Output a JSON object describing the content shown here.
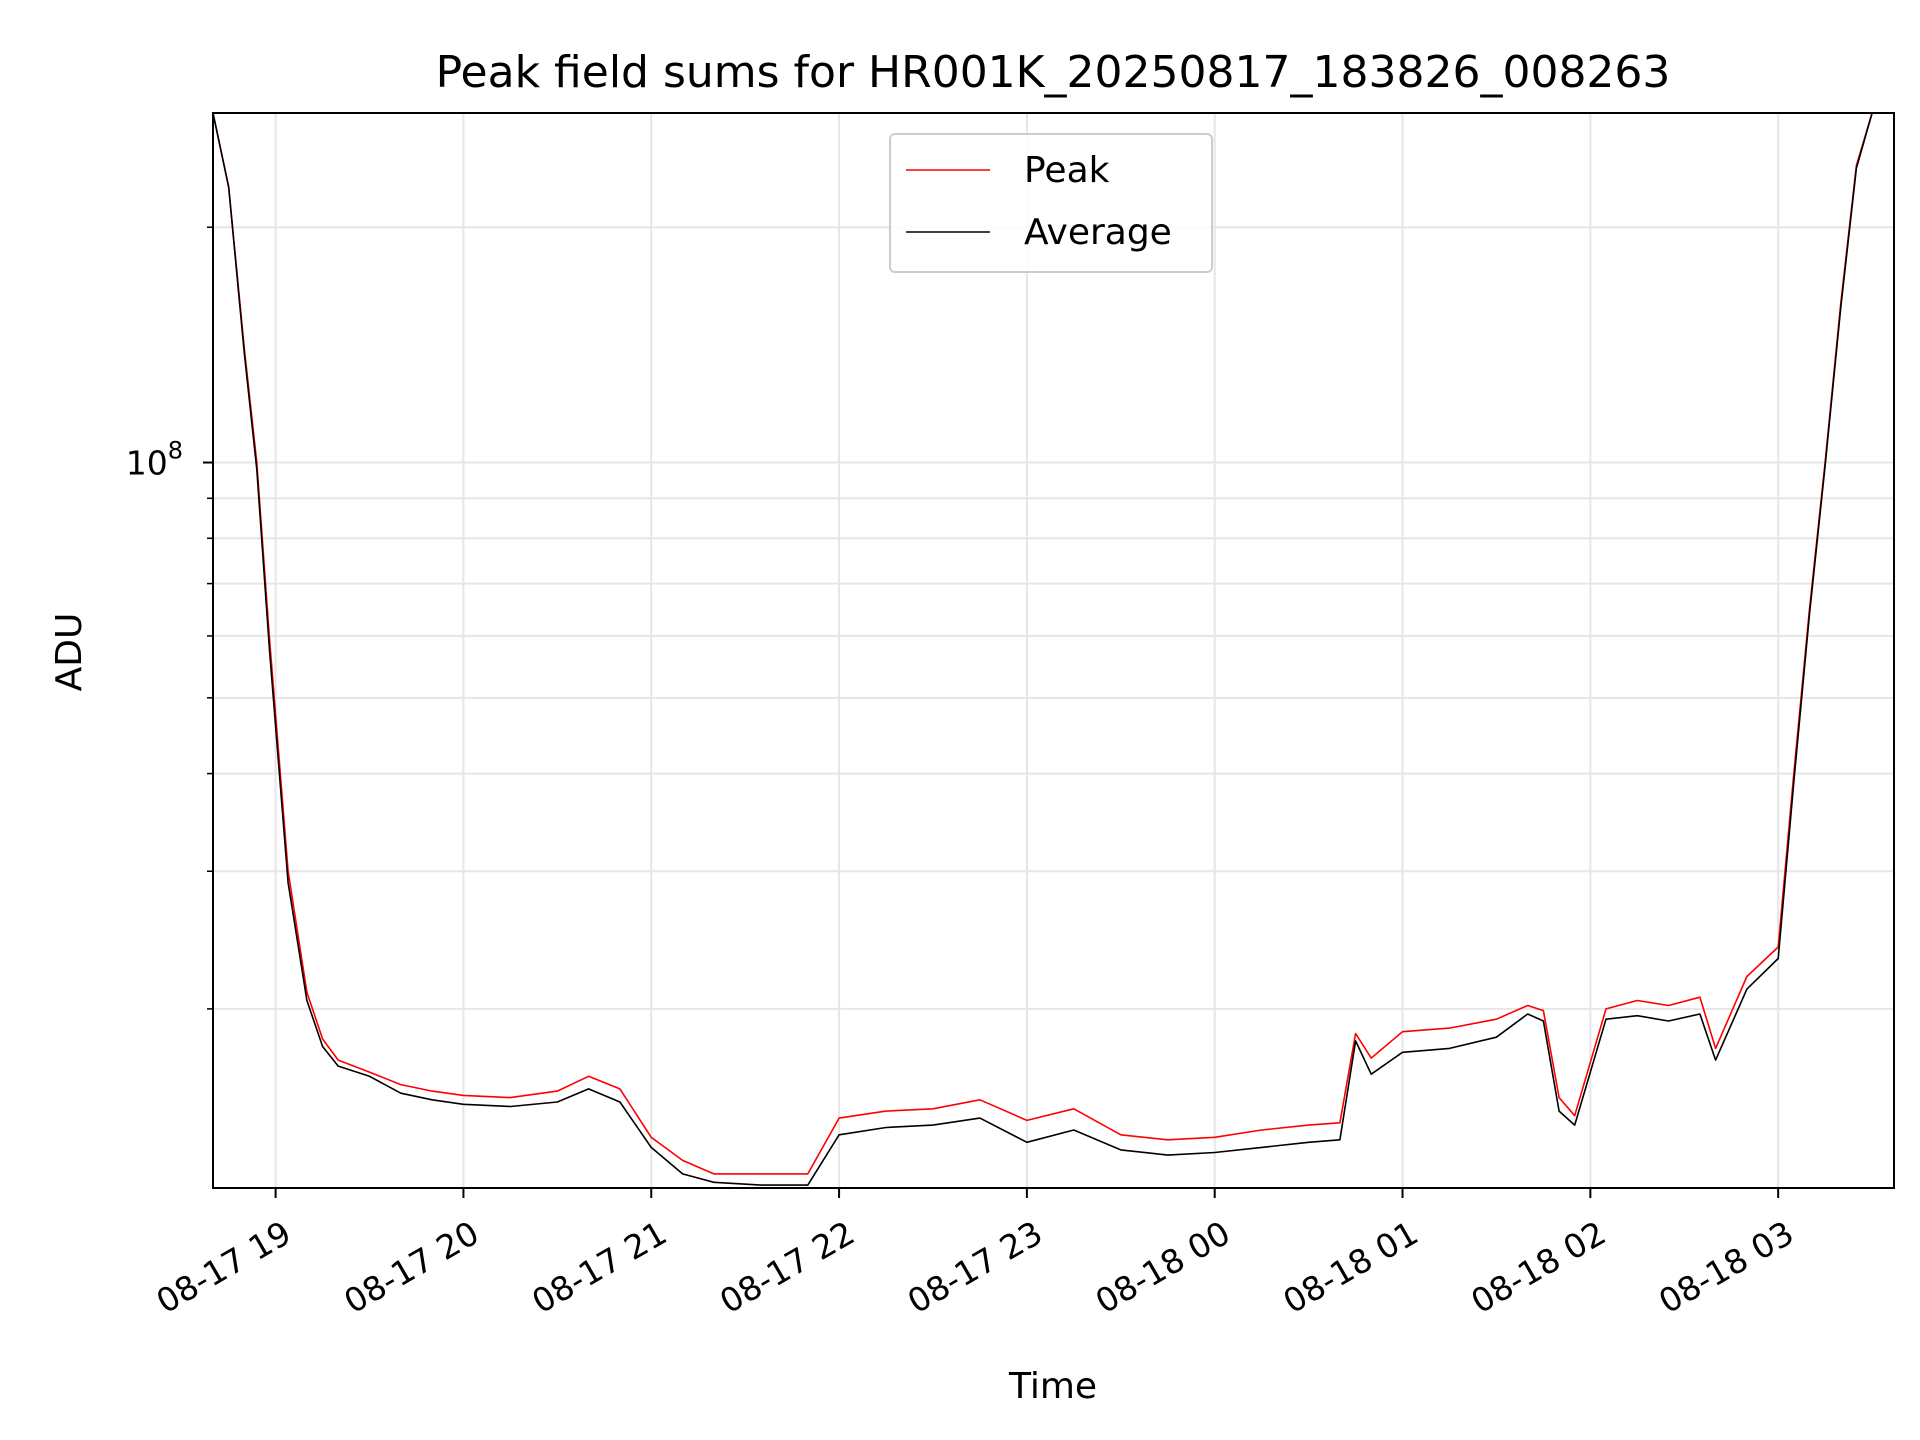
{
  "chart_data": {
    "type": "line",
    "title": "Peak field sums for HR001K_20250817_183826_008263",
    "xlabel": "Time",
    "ylabel": "ADU",
    "y_scale": "log",
    "ylim": [
      11800000,
      280000000
    ],
    "xlim": [
      "2025-08-17 18:40",
      "2025-08-18 03:37"
    ],
    "grid": true,
    "legend_position": "top-center",
    "x_ticks": [
      "08-17 19",
      "08-17 20",
      "08-17 21",
      "08-17 22",
      "08-17 23",
      "08-18 00",
      "08-18 01",
      "08-18 02",
      "08-18 03"
    ],
    "y_tick_label": {
      "base": "10",
      "exp": "8"
    },
    "colors": {
      "peak": "#ff0000",
      "average": "#000000",
      "grid": "#e6e6e6"
    },
    "series": [
      {
        "name": "Peak",
        "x": [
          "2025-08-17 18:40",
          "2025-08-17 18:45",
          "2025-08-17 18:50",
          "2025-08-17 18:54",
          "2025-08-17 18:58",
          "2025-08-17 19:04",
          "2025-08-17 19:10",
          "2025-08-17 19:15",
          "2025-08-17 19:20",
          "2025-08-17 19:30",
          "2025-08-17 19:40",
          "2025-08-17 19:50",
          "2025-08-17 20:00",
          "2025-08-17 20:15",
          "2025-08-17 20:30",
          "2025-08-17 20:40",
          "2025-08-17 20:50",
          "2025-08-17 21:00",
          "2025-08-17 21:10",
          "2025-08-17 21:20",
          "2025-08-17 21:35",
          "2025-08-17 21:50",
          "2025-08-17 22:00",
          "2025-08-17 22:15",
          "2025-08-17 22:30",
          "2025-08-17 22:45",
          "2025-08-17 23:00",
          "2025-08-17 23:15",
          "2025-08-17 23:30",
          "2025-08-17 23:45",
          "2025-08-18 00:00",
          "2025-08-18 00:15",
          "2025-08-18 00:30",
          "2025-08-18 00:40",
          "2025-08-18 00:45",
          "2025-08-18 00:50",
          "2025-08-18 01:00",
          "2025-08-18 01:15",
          "2025-08-18 01:30",
          "2025-08-18 01:40",
          "2025-08-18 01:45",
          "2025-08-18 01:50",
          "2025-08-18 01:55",
          "2025-08-18 02:05",
          "2025-08-18 02:15",
          "2025-08-18 02:25",
          "2025-08-18 02:35",
          "2025-08-18 02:40",
          "2025-08-18 02:50",
          "2025-08-18 03:00",
          "2025-08-18 03:05",
          "2025-08-18 03:10",
          "2025-08-18 03:15",
          "2025-08-18 03:20",
          "2025-08-18 03:25",
          "2025-08-18 03:30",
          "2025-08-18 03:37"
        ],
        "y": [
          280000000,
          225000000,
          140000000,
          100000000,
          60000000,
          30000000,
          21000000,
          18300000,
          17200000,
          16600000,
          16000000,
          15700000,
          15500000,
          15400000,
          15700000,
          16400000,
          15800000,
          13700000,
          12800000,
          12300000,
          12300000,
          12300000,
          14500000,
          14800000,
          14900000,
          15300000,
          14400000,
          14900000,
          13800000,
          13600000,
          13700000,
          14000000,
          14200000,
          14300000,
          18600000,
          17300000,
          18700000,
          18900000,
          19400000,
          20200000,
          19900000,
          15400000,
          14600000,
          20000000,
          20500000,
          20200000,
          20700000,
          17800000,
          22000000,
          24000000,
          40000000,
          65000000,
          100000000,
          160000000,
          240000000,
          280000000,
          280000000
        ]
      },
      {
        "name": "Average",
        "x": [
          "2025-08-17 18:40",
          "2025-08-17 18:45",
          "2025-08-17 18:50",
          "2025-08-17 18:54",
          "2025-08-17 18:58",
          "2025-08-17 19:04",
          "2025-08-17 19:10",
          "2025-08-17 19:15",
          "2025-08-17 19:20",
          "2025-08-17 19:30",
          "2025-08-17 19:40",
          "2025-08-17 19:50",
          "2025-08-17 20:00",
          "2025-08-17 20:15",
          "2025-08-17 20:30",
          "2025-08-17 20:40",
          "2025-08-17 20:50",
          "2025-08-17 21:00",
          "2025-08-17 21:10",
          "2025-08-17 21:20",
          "2025-08-17 21:35",
          "2025-08-17 21:50",
          "2025-08-17 22:00",
          "2025-08-17 22:15",
          "2025-08-17 22:30",
          "2025-08-17 22:45",
          "2025-08-17 23:00",
          "2025-08-17 23:15",
          "2025-08-17 23:30",
          "2025-08-17 23:45",
          "2025-08-18 00:00",
          "2025-08-18 00:15",
          "2025-08-18 00:30",
          "2025-08-18 00:40",
          "2025-08-18 00:45",
          "2025-08-18 00:50",
          "2025-08-18 01:00",
          "2025-08-18 01:15",
          "2025-08-18 01:30",
          "2025-08-18 01:40",
          "2025-08-18 01:45",
          "2025-08-18 01:50",
          "2025-08-18 01:55",
          "2025-08-18 02:05",
          "2025-08-18 02:15",
          "2025-08-18 02:25",
          "2025-08-18 02:35",
          "2025-08-18 02:40",
          "2025-08-18 02:50",
          "2025-08-18 03:00",
          "2025-08-18 03:05",
          "2025-08-18 03:10",
          "2025-08-18 03:15",
          "2025-08-18 03:20",
          "2025-08-18 03:25",
          "2025-08-18 03:30",
          "2025-08-18 03:37"
        ],
        "y": [
          280000000,
          225000000,
          138000000,
          98000000,
          58000000,
          29000000,
          20500000,
          17900000,
          16900000,
          16400000,
          15600000,
          15300000,
          15100000,
          15000000,
          15200000,
          15800000,
          15200000,
          13300000,
          12300000,
          12000000,
          11900000,
          11900000,
          13800000,
          14100000,
          14200000,
          14500000,
          13500000,
          14000000,
          13200000,
          13000000,
          13100000,
          13300000,
          13500000,
          13600000,
          18200000,
          16500000,
          17600000,
          17800000,
          18400000,
          19700000,
          19300000,
          14800000,
          14200000,
          19400000,
          19600000,
          19300000,
          19700000,
          17200000,
          21200000,
          23200000,
          39000000,
          64000000,
          99000000,
          158000000,
          238000000,
          280000000,
          280000000
        ]
      }
    ]
  }
}
